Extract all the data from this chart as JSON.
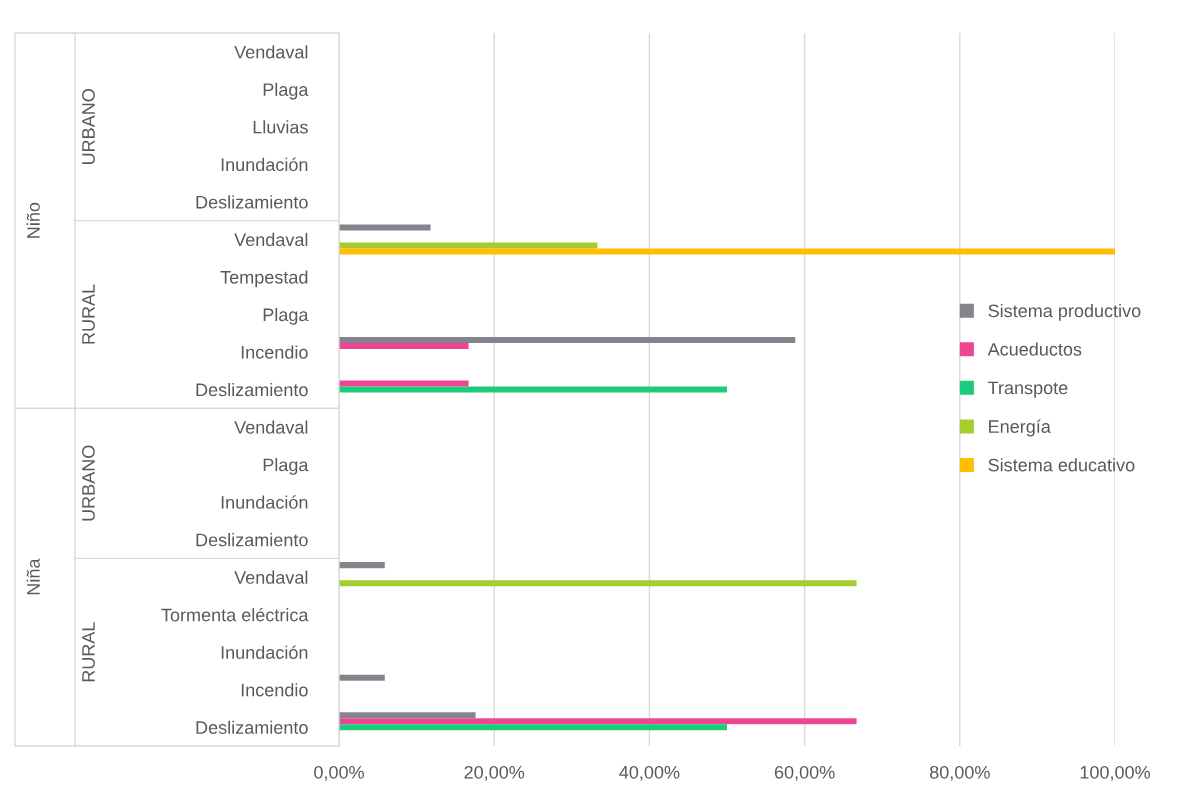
{
  "chart_data": {
    "type": "bar",
    "orientation": "horizontal",
    "categories": [
      "Vendaval",
      "Plaga",
      "Lluvias",
      "Inundación",
      "Deslizamiento",
      "Vendaval",
      "Tempestad",
      "Plaga",
      "Incendio",
      "Deslizamiento",
      "Vendaval",
      "Plaga",
      "Inundación",
      "Deslizamiento",
      "Vendaval",
      "Tormenta eléctrica",
      "Inundación",
      "Incendio",
      "Deslizamiento"
    ],
    "series": [
      {
        "name": "Sistema productivo",
        "color": "#85848c",
        "values": [
          null,
          null,
          null,
          null,
          null,
          11.8,
          null,
          null,
          58.8,
          null,
          null,
          null,
          null,
          null,
          5.9,
          null,
          null,
          5.9,
          17.6
        ]
      },
      {
        "name": "Acueductos",
        "color": "#ee4595",
        "values": [
          null,
          null,
          null,
          null,
          null,
          null,
          null,
          null,
          16.7,
          16.7,
          null,
          null,
          null,
          null,
          null,
          null,
          null,
          null,
          66.7
        ]
      },
      {
        "name": "Transpote",
        "color": "#1ecb7a",
        "values": [
          null,
          null,
          null,
          null,
          null,
          null,
          null,
          null,
          null,
          50,
          null,
          null,
          null,
          null,
          null,
          null,
          null,
          null,
          50
        ]
      },
      {
        "name": "Energía",
        "color": "#a4cd2d",
        "values": [
          null,
          null,
          null,
          null,
          null,
          33.3,
          null,
          null,
          null,
          null,
          null,
          null,
          null,
          null,
          66.7,
          null,
          null,
          null,
          null
        ]
      },
      {
        "name": "Sistema educativo",
        "color": "#ffbe00",
        "values": [
          null,
          null,
          null,
          null,
          null,
          100,
          null,
          null,
          null,
          null,
          null,
          null,
          null,
          null,
          null,
          null,
          null,
          null,
          null
        ]
      }
    ],
    "xlim": [
      0,
      100
    ],
    "xticks": [
      {
        "value": 0,
        "label": "0,00%"
      },
      {
        "value": 20,
        "label": "20,00%"
      },
      {
        "value": 40,
        "label": "40,00%"
      },
      {
        "value": 60,
        "label": "60,00%"
      },
      {
        "value": 80,
        "label": "80,00%"
      },
      {
        "value": 100,
        "label": "100,00%"
      }
    ],
    "annotations": [
      "Niño",
      "URBANO",
      "RURAL",
      "Niña",
      "URBANO",
      "RURAL"
    ],
    "grid": "x",
    "legend": "right"
  }
}
